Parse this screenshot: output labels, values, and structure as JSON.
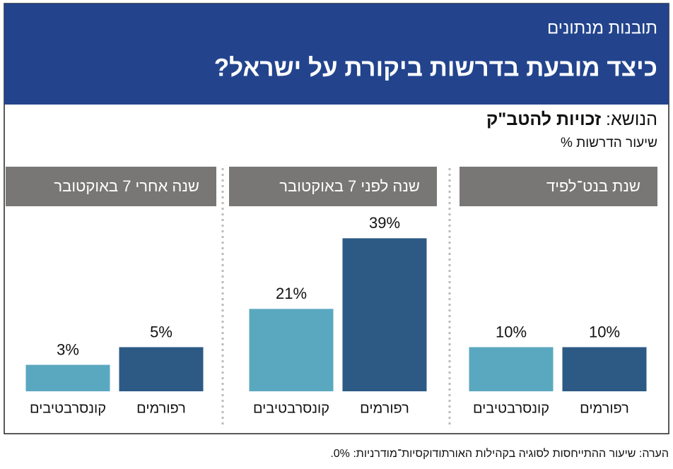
{
  "header": {
    "kicker": "תובנות מנתונים",
    "title": "כיצד מובעת בדרשות ביקורת על ישראל?"
  },
  "topic": {
    "label": "הנושא: ",
    "value": "זכויות להטב\"ק"
  },
  "subtitle": "שיעור הדרשות %",
  "note": "הערה: שיעור ההתייחסות לסוגיה בקהילות האורתודוקסיות־מודרניות: 0%.",
  "chart_data": [
    {
      "type": "bar",
      "title": "שנת בנט־לפיד",
      "categories": [
        "רפורמים",
        "קונסרבטיבים"
      ],
      "values": [
        10,
        10
      ],
      "value_labels": [
        "10%",
        "10%"
      ],
      "colors": [
        "#2d5a85",
        "#5aa8bf"
      ],
      "ylim": [
        0,
        40
      ]
    },
    {
      "type": "bar",
      "title": "שנה לפני 7 באוקטובר",
      "categories": [
        "רפורמים",
        "קונסרבטיבים"
      ],
      "values": [
        39,
        21
      ],
      "value_labels": [
        "39%",
        "21%"
      ],
      "colors": [
        "#2d5a85",
        "#5aa8bf"
      ],
      "ylim": [
        0,
        45
      ]
    },
    {
      "type": "bar",
      "title": "שנה אחרי 7 באוקטובר",
      "categories": [
        "רפורמים",
        "קונסרבטיבים"
      ],
      "values": [
        5,
        3
      ],
      "value_labels": [
        "5%",
        "3%"
      ],
      "colors": [
        "#2d5a85",
        "#5aa8bf"
      ],
      "ylim": [
        0,
        20
      ]
    }
  ]
}
